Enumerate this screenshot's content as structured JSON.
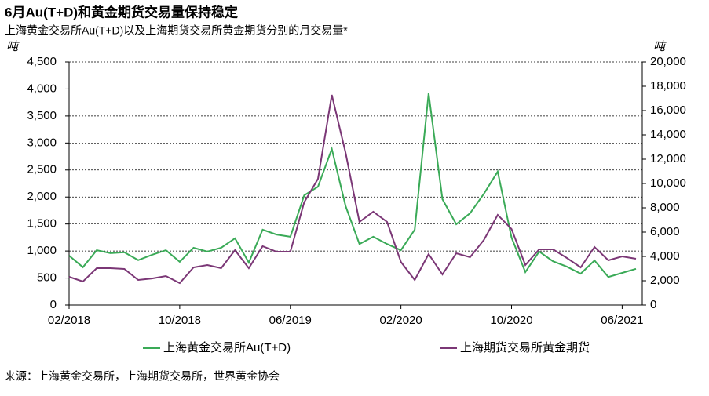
{
  "chart_data": {
    "type": "line",
    "title": "6月Au(T+D)和黄金期货交易量保持稳定",
    "subtitle": "上海黄金交易所Au(T+D)以及上海期货交易所黄金期货分别的月交易量*",
    "y_label": "吨",
    "y2_label": "吨",
    "source": "来源：上海黄金交易所，上海期货交易所，世界黄金协会",
    "categories": [
      "02/2018",
      null,
      null,
      null,
      null,
      null,
      null,
      null,
      "10/2018",
      null,
      null,
      null,
      null,
      null,
      null,
      null,
      "06/2019",
      null,
      null,
      null,
      null,
      null,
      null,
      null,
      "02/2020",
      null,
      null,
      null,
      null,
      null,
      null,
      null,
      "10/2020",
      null,
      null,
      null,
      null,
      null,
      null,
      null,
      "06/2021",
      null
    ],
    "series": [
      {
        "name": "上海黄金交易所Au(T+D)",
        "color": "#3aaa57",
        "axis": "y",
        "values": [
          915,
          700,
          1015,
          960,
          975,
          830,
          930,
          1015,
          800,
          1060,
          990,
          1060,
          1235,
          785,
          1395,
          1305,
          1265,
          2030,
          2190,
          2890,
          1830,
          1130,
          1265,
          1130,
          1015,
          1395,
          3920,
          1960,
          1495,
          1700,
          2060,
          2470,
          1250,
          610,
          990,
          810,
          710,
          580,
          825,
          520,
          595,
          670
        ]
      },
      {
        "name": "上海期货交易所黄金期货",
        "color": "#7b3776",
        "axis": "y2",
        "values": [
          2320,
          1935,
          3030,
          3030,
          2970,
          2065,
          2190,
          2390,
          1805,
          3095,
          3290,
          3030,
          4515,
          3030,
          4840,
          4385,
          4385,
          8450,
          10390,
          17290,
          12515,
          6840,
          7680,
          6840,
          3550,
          2065,
          4195,
          2515,
          4260,
          3935,
          5355,
          7420,
          6260,
          3290,
          4580,
          4580,
          3870,
          3095,
          4775,
          3680,
          4000,
          3805
        ]
      }
    ],
    "ylim": [
      0,
      4500
    ],
    "yticks": [
      0,
      {
        "value": 500,
        "label": "500"
      },
      {
        "value": 1000,
        "label": "1,000"
      },
      {
        "value": 1500,
        "label": "1,500"
      },
      {
        "value": 2000,
        "label": "2,000"
      },
      {
        "value": 2500,
        "label": "2,500"
      },
      {
        "value": 3000,
        "label": "3,000"
      },
      {
        "value": 3500,
        "label": "3,500"
      },
      {
        "value": 4000,
        "label": "4,000"
      },
      {
        "value": 4500,
        "label": "4,500"
      }
    ],
    "y2lim": [
      0,
      20000
    ],
    "y2ticks": [
      0,
      {
        "value": 2000,
        "label": "2,000"
      },
      {
        "value": 4000,
        "label": "4,000"
      },
      {
        "value": 6000,
        "label": "6,000"
      },
      {
        "value": 8000,
        "label": "8,000"
      },
      {
        "value": 10000,
        "label": "10,000"
      },
      {
        "value": 12000,
        "label": "12,000"
      },
      {
        "value": 14000,
        "label": "14,000"
      },
      {
        "value": 16000,
        "label": "16,000"
      },
      {
        "value": 18000,
        "label": "18,000"
      },
      {
        "value": 20000,
        "label": "20,000"
      }
    ],
    "grid": true,
    "legend": "bottom"
  }
}
